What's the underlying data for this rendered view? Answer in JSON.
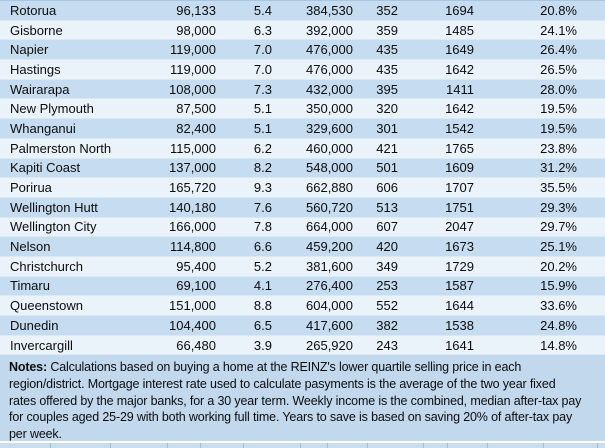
{
  "table": {
    "rows": [
      [
        "Rotorua",
        "96,133",
        "5.4",
        "384,530",
        "352",
        "1694",
        "20.8%"
      ],
      [
        "Gisborne",
        "98,000",
        "6.3",
        "392,000",
        "359",
        "1485",
        "24.1%"
      ],
      [
        "Napier",
        "119,000",
        "7.0",
        "476,000",
        "435",
        "1649",
        "26.4%"
      ],
      [
        "Hastings",
        "119,000",
        "7.0",
        "476,000",
        "435",
        "1642",
        "26.5%"
      ],
      [
        "Wairarapa",
        "108,000",
        "7.3",
        "432,000",
        "395",
        "1411",
        "28.0%"
      ],
      [
        "New Plymouth",
        "87,500",
        "5.1",
        "350,000",
        "320",
        "1642",
        "19.5%"
      ],
      [
        "Whanganui",
        "82,400",
        "5.1",
        "329,600",
        "301",
        "1542",
        "19.5%"
      ],
      [
        "Palmerston North",
        "115,000",
        "6.2",
        "460,000",
        "421",
        "1765",
        "23.8%"
      ],
      [
        "Kapiti Coast",
        "137,000",
        "8.2",
        "548,000",
        "501",
        "1609",
        "31.2%"
      ],
      [
        "Porirua",
        "165,720",
        "9.3",
        "662,880",
        "606",
        "1707",
        "35.5%"
      ],
      [
        "Wellington Hutt",
        "140,180",
        "7.6",
        "560,720",
        "513",
        "1751",
        "29.3%"
      ],
      [
        "Wellington City",
        "166,000",
        "7.8",
        "664,000",
        "607",
        "2047",
        "29.7%"
      ],
      [
        "Nelson",
        "114,800",
        "6.6",
        "459,200",
        "420",
        "1673",
        "25.1%"
      ],
      [
        "Christchurch",
        "95,400",
        "5.2",
        "381,600",
        "349",
        "1729",
        "20.2%"
      ],
      [
        "Timaru",
        "69,100",
        "4.1",
        "276,400",
        "253",
        "1587",
        "15.9%"
      ],
      [
        "Queenstown",
        "151,000",
        "8.8",
        "604,000",
        "552",
        "1644",
        "33.6%"
      ],
      [
        "Dunedin",
        "104,400",
        "6.5",
        "417,600",
        "382",
        "1538",
        "24.8%"
      ],
      [
        "Invercargill",
        "66,480",
        "3.9",
        "265,920",
        "243",
        "1641",
        "14.8%"
      ]
    ]
  },
  "notes": {
    "label": "Notes:",
    "lines": [
      "Calculations based on buying a home at the REINZ's lower quartile selling price in each",
      "region/district. Mortgage interest rate used to calculate pasyments is the average of the two year fixed",
      "rates offered by the major banks, for a 30 year term. Weekly income is the combined, median after-tax pay",
      "for couples aged 25-29 with both working full time. Years to save is based on saving 20% of after-tax pay",
      "per week."
    ]
  },
  "bottom_strip": {
    "ticks": [
      50,
      110,
      167,
      200,
      243,
      300,
      327,
      367,
      423,
      447,
      487,
      543,
      597
    ]
  },
  "colors": {
    "row_blue": "#c6dcf0",
    "row_light": "#eaf2fa",
    "notes_bg": "#c1d8ed",
    "row_divider": "#dce9f5",
    "text": "#0d0d0d"
  }
}
